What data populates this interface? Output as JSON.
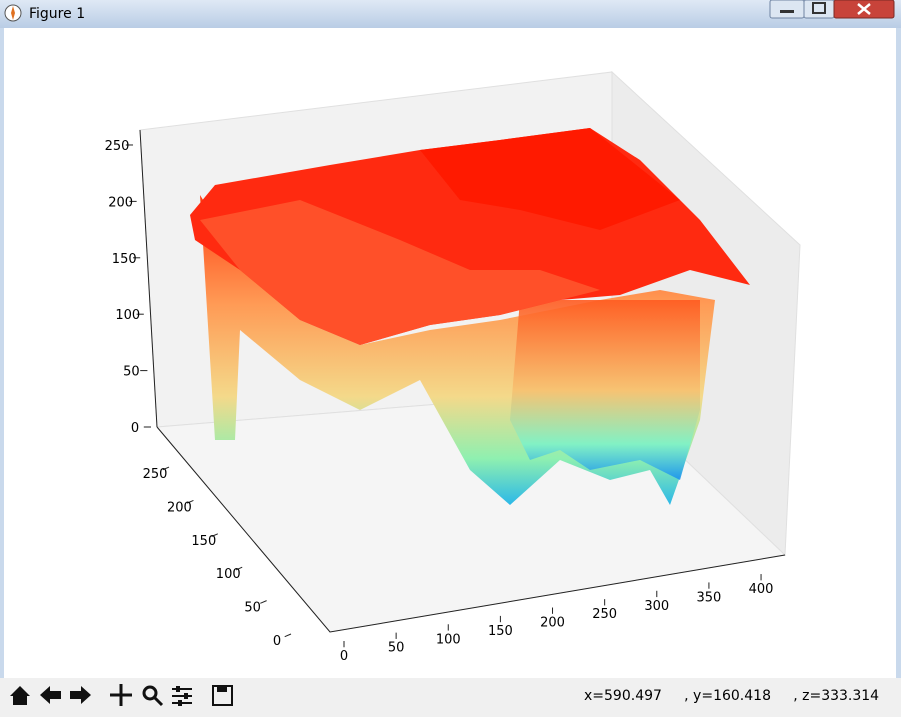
{
  "window": {
    "title": "Figure 1"
  },
  "chart_data": {
    "type": "surface",
    "xlim": [
      0,
      420
    ],
    "ylim": [
      0,
      280
    ],
    "zlim": [
      0,
      260
    ],
    "xticks": [
      0,
      50,
      100,
      150,
      200,
      250,
      300,
      350,
      400
    ],
    "yticks": [
      0,
      50,
      100,
      150,
      200,
      250
    ],
    "zticks": [
      0,
      50,
      100,
      150,
      200,
      250
    ]
  },
  "status": "x=590.497     , y=160.418     , z=333.314"
}
